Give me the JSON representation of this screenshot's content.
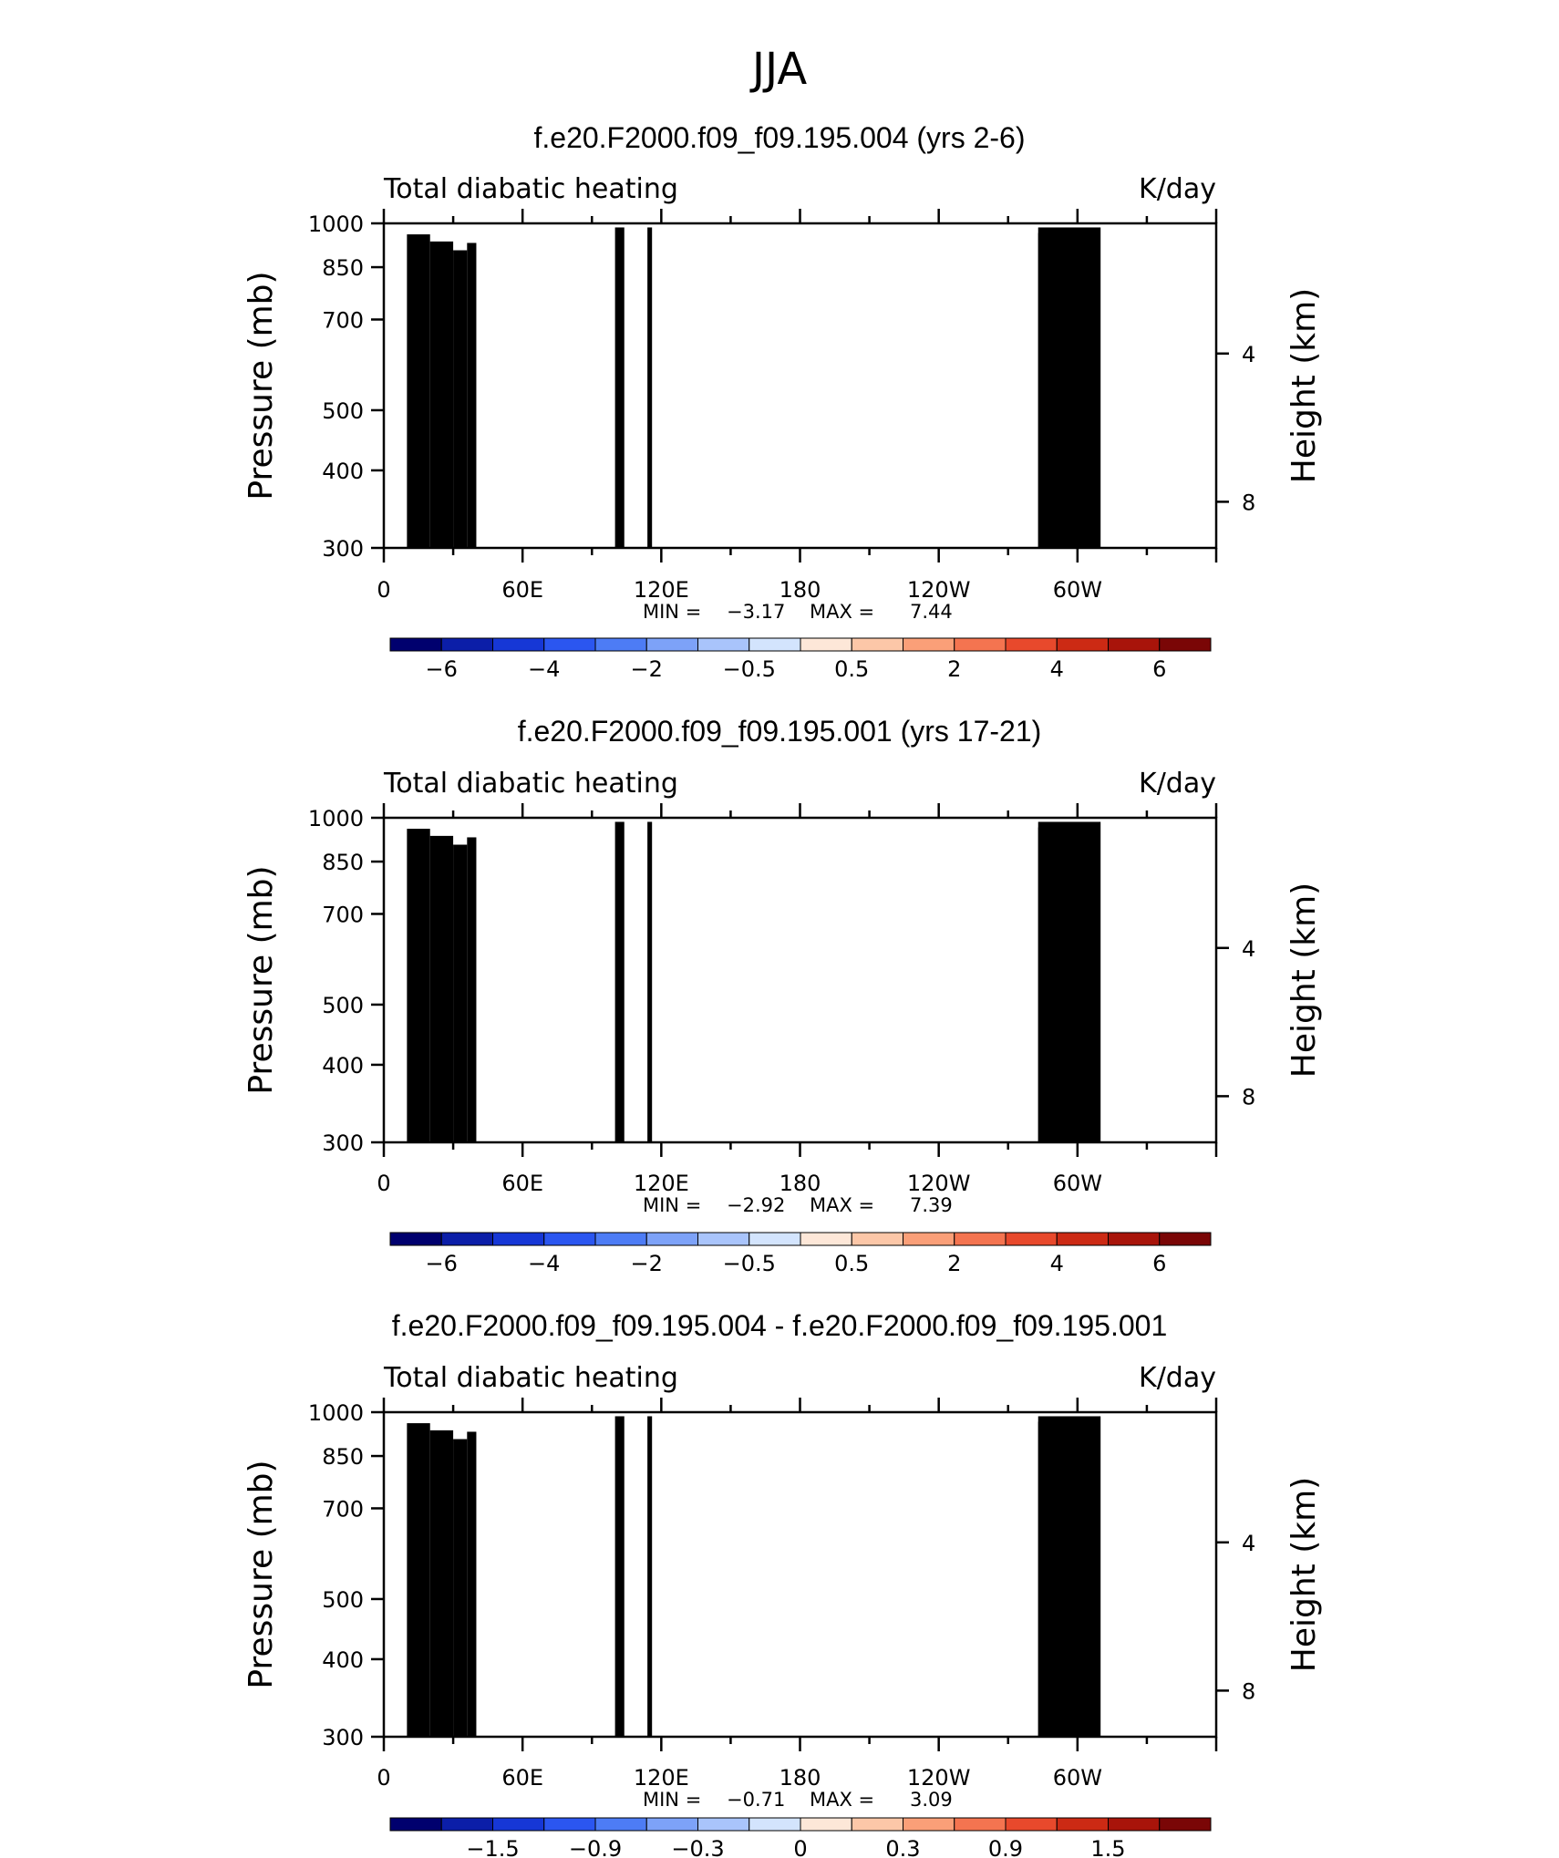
{
  "figure_title": "JJA",
  "chart_data": [
    {
      "type": "heatmap",
      "title": "f.e20.F2000.f09_f09.195.004 (yrs 2-6)",
      "left_label": "Total diabatic heating",
      "right_label": "K/day",
      "ylabel": "Pressure (mb)",
      "ylabel_right": "Height (km)",
      "yticks": [
        "300",
        "400",
        "500",
        "700",
        "850",
        "1000"
      ],
      "ylim": [
        1000,
        300
      ],
      "yticks_right": [
        "8",
        "4"
      ],
      "xticks": [
        "0",
        "60E",
        "120E",
        "180",
        "120W",
        "60W"
      ],
      "xlim": [
        0,
        360
      ],
      "min_label": "MIN =",
      "min_value": "−3.17",
      "max_label": "MAX =",
      "max_value": "7.44",
      "colorbar_labels": [
        "−6",
        "−4",
        "−2",
        "−0.5",
        "0.5",
        "2",
        "4",
        "6"
      ]
    },
    {
      "type": "heatmap",
      "title": "f.e20.F2000.f09_f09.195.001 (yrs 17-21)",
      "left_label": "Total diabatic heating",
      "right_label": "K/day",
      "ylabel": "Pressure (mb)",
      "ylabel_right": "Height (km)",
      "yticks": [
        "300",
        "400",
        "500",
        "700",
        "850",
        "1000"
      ],
      "ylim": [
        1000,
        300
      ],
      "yticks_right": [
        "8",
        "4"
      ],
      "xticks": [
        "0",
        "60E",
        "120E",
        "180",
        "120W",
        "60W"
      ],
      "xlim": [
        0,
        360
      ],
      "min_label": "MIN =",
      "min_value": "−2.92",
      "max_label": "MAX =",
      "max_value": "7.39",
      "colorbar_labels": [
        "−6",
        "−4",
        "−2",
        "−0.5",
        "0.5",
        "2",
        "4",
        "6"
      ]
    },
    {
      "type": "heatmap",
      "title": "f.e20.F2000.f09_f09.195.004 - f.e20.F2000.f09_f09.195.001",
      "left_label": "Total diabatic heating",
      "right_label": "K/day",
      "ylabel": "Pressure (mb)",
      "ylabel_right": "Height (km)",
      "yticks": [
        "300",
        "400",
        "500",
        "700",
        "850",
        "1000"
      ],
      "ylim": [
        1000,
        300
      ],
      "yticks_right": [
        "8",
        "4"
      ],
      "xticks": [
        "0",
        "60E",
        "120E",
        "180",
        "120W",
        "60W"
      ],
      "xlim": [
        0,
        360
      ],
      "min_label": "MIN =",
      "min_value": "−0.71",
      "max_label": "MAX =",
      "max_value": "3.09",
      "colorbar_labels": [
        "−1.5",
        "−0.9",
        "−0.3",
        "0",
        "0.3",
        "0.9",
        "1.5"
      ]
    }
  ],
  "colormap": [
    "#00006e",
    "#0b1ea8",
    "#1637d6",
    "#2b56f0",
    "#4d7cf5",
    "#7da2f8",
    "#a9c4fb",
    "#d3e4fd",
    "#fde7d8",
    "#fcc7a8",
    "#fa9f78",
    "#f47450",
    "#e8492c",
    "#cc2a14",
    "#a8140a",
    "#7a0606"
  ]
}
